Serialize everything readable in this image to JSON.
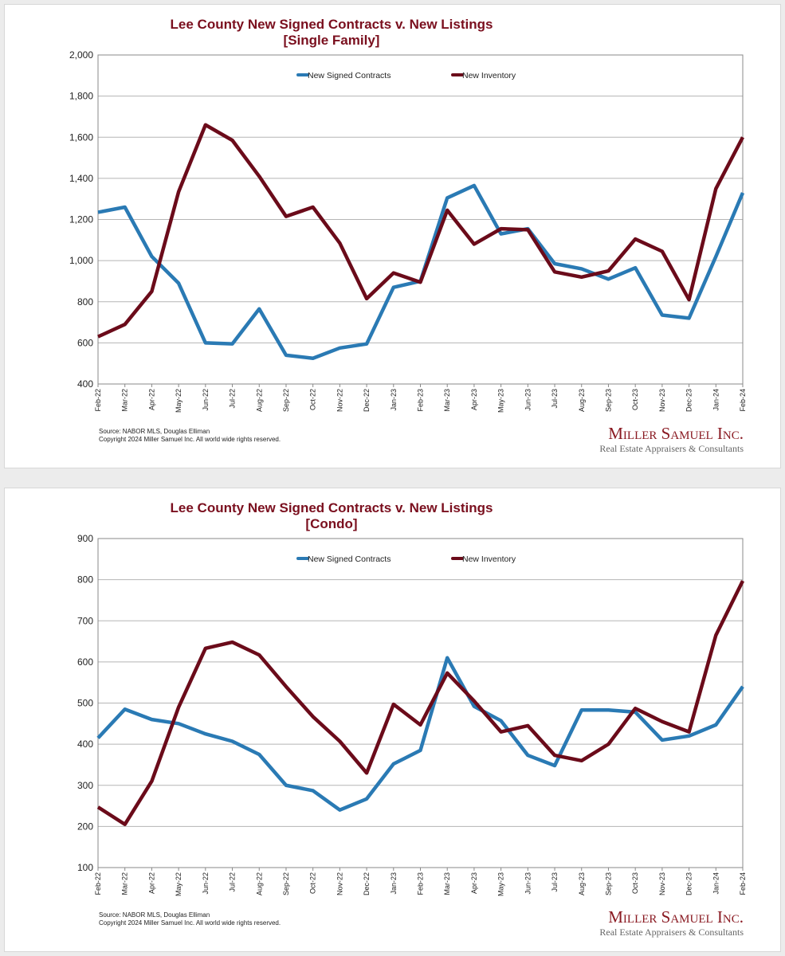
{
  "source_text": "Source: NABOR MLS, Douglas Elliman",
  "copyright_text": "Copyright 2024 Miller Samuel Inc.  All world wide rights reserved.",
  "logo_text": "Miller Samuel Inc.",
  "logo_tagline": "Real Estate Appraisers & Consultants",
  "colors": {
    "contracts": "#2a7ab4",
    "inventory": "#6b0b1a",
    "title": "#7a0f1e"
  },
  "chart_data": [
    {
      "type": "line",
      "title": "Lee County New Signed Contracts v. New Listings",
      "subtitle": "[Single Family]",
      "xlabel": "",
      "ylabel": "",
      "ylim": [
        400,
        2000
      ],
      "yticks": [
        "400",
        "600",
        "800",
        "1,000",
        "1,200",
        "1,400",
        "1,600",
        "1,800",
        "2,000"
      ],
      "ytick_values": [
        400,
        600,
        800,
        1000,
        1200,
        1400,
        1600,
        1800,
        2000
      ],
      "grid": true,
      "legend_placement": "top-center",
      "categories": [
        "Feb-22",
        "Mar-22",
        "Apr-22",
        "May-22",
        "Jun-22",
        "Jul-22",
        "Aug-22",
        "Sep-22",
        "Oct-22",
        "Nov-22",
        "Dec-22",
        "Jan-23",
        "Feb-23",
        "Mar-23",
        "Apr-23",
        "May-23",
        "Jun-23",
        "Jul-23",
        "Aug-23",
        "Sep-23",
        "Oct-23",
        "Nov-23",
        "Dec-23",
        "Jan-24",
        "Feb-24"
      ],
      "series": [
        {
          "name": "New Signed Contracts",
          "color": "#2a7ab4",
          "values": [
            1235,
            1260,
            1020,
            890,
            600,
            595,
            765,
            540,
            525,
            575,
            595,
            870,
            900,
            1305,
            1365,
            1130,
            1155,
            985,
            960,
            910,
            965,
            735,
            720,
            1020,
            1330
          ]
        },
        {
          "name": "New Inventory",
          "color": "#6b0b1a",
          "values": [
            630,
            690,
            850,
            1335,
            1660,
            1585,
            1410,
            1215,
            1260,
            1085,
            815,
            940,
            895,
            1245,
            1080,
            1155,
            1150,
            945,
            920,
            950,
            1105,
            1045,
            810,
            1350,
            1600
          ]
        }
      ]
    },
    {
      "type": "line",
      "title": "Lee County New Signed Contracts v. New Listings",
      "subtitle": "[Condo]",
      "xlabel": "",
      "ylabel": "",
      "ylim": [
        100,
        900
      ],
      "yticks": [
        "100",
        "200",
        "300",
        "400",
        "500",
        "600",
        "700",
        "800",
        "900"
      ],
      "ytick_values": [
        100,
        200,
        300,
        400,
        500,
        600,
        700,
        800,
        900
      ],
      "grid": true,
      "legend_placement": "top-center",
      "categories": [
        "Feb-22",
        "Mar-22",
        "Apr-22",
        "May-22",
        "Jun-22",
        "Jul-22",
        "Aug-22",
        "Sep-22",
        "Oct-22",
        "Nov-22",
        "Dec-22",
        "Jan-23",
        "Feb-23",
        "Mar-23",
        "Apr-23",
        "May-23",
        "Jun-23",
        "Jul-23",
        "Aug-23",
        "Sep-23",
        "Oct-23",
        "Nov-23",
        "Dec-23",
        "Jan-24",
        "Feb-24"
      ],
      "series": [
        {
          "name": "New Signed Contracts",
          "color": "#2a7ab4",
          "values": [
            415,
            485,
            460,
            450,
            425,
            407,
            375,
            300,
            287,
            240,
            267,
            352,
            385,
            610,
            492,
            457,
            373,
            348,
            483,
            483,
            478,
            410,
            420,
            447,
            540
          ]
        },
        {
          "name": "New Inventory",
          "color": "#6b0b1a",
          "values": [
            247,
            205,
            310,
            490,
            633,
            648,
            617,
            540,
            467,
            407,
            330,
            497,
            447,
            573,
            505,
            430,
            445,
            373,
            360,
            400,
            487,
            455,
            430,
            665,
            797
          ]
        }
      ]
    }
  ]
}
